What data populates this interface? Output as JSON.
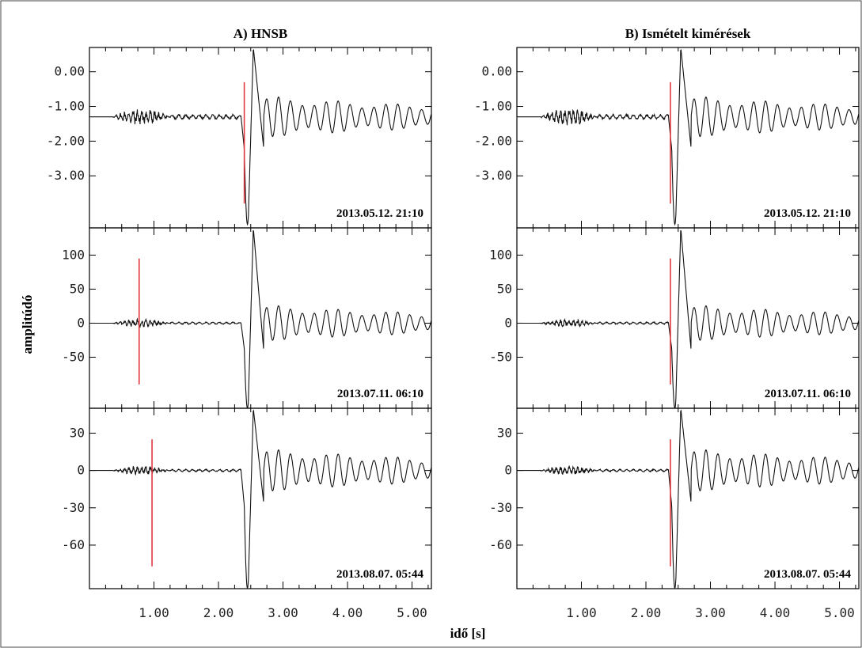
{
  "chart_data": {
    "type": "line",
    "xlabel": "idő [s]",
    "ylabel": "amplitúdó",
    "xlim": [
      0,
      5.3
    ],
    "x_ticks": [
      1.0,
      2.0,
      3.0,
      4.0,
      5.0
    ],
    "x_tick_labels": [
      "1.00",
      "2.00",
      "3.00",
      "4.00",
      "5.00"
    ],
    "columns": [
      {
        "title": "A) HNSB",
        "picks": [
          2.4,
          0.77,
          0.97
        ]
      },
      {
        "title": "B) Ismételt kimérések",
        "picks": [
          2.38,
          2.38,
          2.38
        ]
      }
    ],
    "rows": [
      {
        "date": "2013.05.12. 21:10",
        "ylim": [
          -4.5,
          0.7
        ],
        "y_ticks": [
          0,
          -1,
          -2,
          -3
        ],
        "y_tick_labels": [
          "0.00",
          "-1.00",
          "-2.00",
          "-3.00"
        ],
        "pick_range": [
          -0.3,
          -3.8
        ],
        "waveform": {
          "baseline": -1.3,
          "arrival": 2.4,
          "first_trough": -4.4,
          "peak": 0.7,
          "noise_amp": 0.2,
          "coda_amp": 0.45
        }
      },
      {
        "date": "2013.07.11. 06:10",
        "ylim": [
          -125,
          140
        ],
        "y_ticks": [
          100,
          50,
          0,
          -50
        ],
        "y_tick_labels": [
          "100",
          "50",
          "0",
          "-50"
        ],
        "pick_range": [
          95,
          -90
        ],
        "waveform": {
          "baseline": 0,
          "arrival": 2.4,
          "first_trough": -125,
          "peak": 140,
          "noise_amp": 5,
          "coda_amp": 20
        }
      },
      {
        "date": "2013.08.07. 05:44",
        "ylim": [
          -95,
          50
        ],
        "y_ticks": [
          30,
          0,
          -30,
          -60
        ],
        "y_tick_labels": [
          "30",
          "0",
          "-30",
          "-60"
        ],
        "pick_range": [
          25,
          -77
        ],
        "waveform": {
          "baseline": 0,
          "arrival": 2.4,
          "first_trough": -95,
          "peak": 50,
          "noise_amp": 3,
          "coda_amp": 13
        }
      }
    ]
  }
}
